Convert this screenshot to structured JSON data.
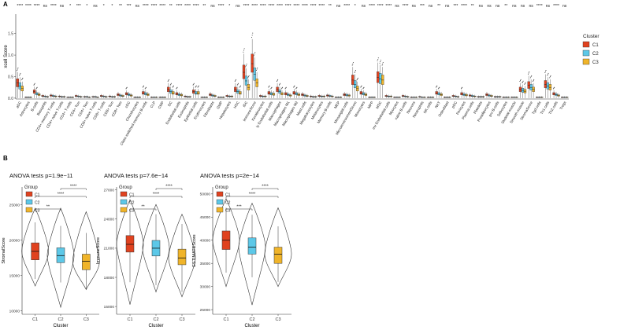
{
  "panel_labels": {
    "a": "A",
    "b": "B"
  },
  "colors": {
    "C1": "#e0421f",
    "C2": "#5cc8e8",
    "C3": "#f0b429"
  },
  "chart_data": [
    {
      "type": "box",
      "panel": "A",
      "ylabel": "xcell Score",
      "yticks": [
        0.0,
        0.5,
        1.0,
        1.5
      ],
      "ylim": [
        -0.02,
        1.95
      ],
      "legend_title": "Cluster",
      "legend_entries": [
        "C1",
        "C2",
        "C3"
      ],
      "categories": [
        "aDC",
        "Astrocytes",
        "B-cells",
        "Basophils",
        "CD4+ memory T-cells",
        "CD4+ naive T-cells",
        "CD4+ T-cells",
        "CD4+ Tcm",
        "CD4+ Tem",
        "CD8+ naive T-cells",
        "CD8+ T-cells",
        "CD8+ Tcm",
        "CD8+ Tem",
        "cDC",
        "Chondrocytes",
        "Class-switched memory B-cells",
        "CLP",
        "CMP",
        "DC",
        "Endothelial cells",
        "Eosinophils",
        "Epithelial cells",
        "Erythrocytes",
        "Fibroblasts",
        "GMP",
        "Hepatocytes",
        "HSC",
        "iDC",
        "ImmuneScore",
        "Keratinocytes",
        "ly Endothelial cells",
        "Macrophages",
        "Macrophages M1",
        "Macrophages M2",
        "Mast cells",
        "Megakaryocytes",
        "Melanocytes",
        "Memory B-cells",
        "MEP",
        "Mesangial cells",
        "MicroenvironmentScore",
        "Monocytes",
        "MPP",
        "MSC",
        "mv Endothelial cells",
        "Myocytes",
        "naive B-cells",
        "Neurons",
        "Neutrophils",
        "NK cells",
        "NKT",
        "Osteoblast",
        "pDC",
        "Pericytes",
        "Plasma cells",
        "Platelets",
        "Preadipocytes",
        "pro B-cells",
        "Sebocytes",
        "Skeletal muscle",
        "Smooth muscle",
        "StromaScore",
        "Tgd cells",
        "Th1 cells",
        "Th2 cells",
        "Tregs"
      ],
      "significance": [
        "****",
        "****",
        "****",
        "ns",
        "****",
        "ns",
        "*",
        "***",
        "*",
        "ns",
        "*",
        "*",
        "**",
        "***",
        "ns",
        "****",
        "****",
        "****",
        "**",
        "****",
        "****",
        "****",
        "**",
        "ns",
        "****",
        "*",
        "ns",
        "****",
        "****",
        "****",
        "****",
        "****",
        "****",
        "****",
        "****",
        "****",
        "****",
        "**",
        "ns",
        "****",
        "*",
        "ns",
        "****",
        "****",
        "****",
        "ns",
        "****",
        "ns",
        "***",
        "ns",
        "**",
        "ns",
        "***",
        "****",
        "**",
        "ns",
        "ns",
        "ns",
        "**",
        "ns",
        "ns",
        "ns",
        "****",
        "ns",
        "****",
        "ns"
      ],
      "series": [
        {
          "name": "C1",
          "values": [
            0.35,
            0.02,
            0.15,
            0.05,
            0.06,
            0.04,
            0.02,
            0.05,
            0.03,
            0.03,
            0.05,
            0.04,
            0.08,
            0.1,
            0.02,
            0.12,
            0.02,
            0.02,
            0.2,
            0.1,
            0.04,
            0.15,
            0.02,
            0.08,
            0.02,
            0.05,
            0.2,
            0.6,
            0.8,
            0.05,
            0.12,
            0.2,
            0.1,
            0.12,
            0.08,
            0.04,
            0.05,
            0.06,
            0.02,
            0.08,
            0.42,
            0.12,
            0.02,
            0.48,
            0.05,
            0.02,
            0.05,
            0.02,
            0.03,
            0.02,
            0.12,
            0.02,
            0.05,
            0.1,
            0.06,
            0.03,
            0.08,
            0.03,
            0.02,
            0.02,
            0.2,
            0.3,
            0.02,
            0.32,
            0.1,
            0.02
          ]
        },
        {
          "name": "C2",
          "values": [
            0.28,
            0.02,
            0.1,
            0.04,
            0.05,
            0.03,
            0.02,
            0.04,
            0.03,
            0.03,
            0.04,
            0.03,
            0.06,
            0.08,
            0.02,
            0.1,
            0.02,
            0.02,
            0.15,
            0.08,
            0.03,
            0.12,
            0.02,
            0.06,
            0.02,
            0.04,
            0.15,
            0.4,
            0.55,
            0.04,
            0.1,
            0.15,
            0.08,
            0.1,
            0.06,
            0.03,
            0.04,
            0.05,
            0.02,
            0.07,
            0.32,
            0.1,
            0.02,
            0.45,
            0.04,
            0.02,
            0.04,
            0.02,
            0.02,
            0.02,
            0.1,
            0.02,
            0.04,
            0.08,
            0.05,
            0.03,
            0.06,
            0.03,
            0.02,
            0.02,
            0.18,
            0.25,
            0.02,
            0.28,
            0.08,
            0.02
          ]
        },
        {
          "name": "C3",
          "values": [
            0.22,
            0.02,
            0.08,
            0.03,
            0.04,
            0.03,
            0.02,
            0.03,
            0.02,
            0.02,
            0.03,
            0.03,
            0.05,
            0.06,
            0.02,
            0.08,
            0.02,
            0.02,
            0.12,
            0.07,
            0.03,
            0.12,
            0.02,
            0.05,
            0.02,
            0.04,
            0.12,
            0.25,
            0.35,
            0.04,
            0.09,
            0.1,
            0.06,
            0.08,
            0.05,
            0.03,
            0.04,
            0.04,
            0.02,
            0.06,
            0.22,
            0.08,
            0.02,
            0.42,
            0.04,
            0.02,
            0.03,
            0.02,
            0.02,
            0.02,
            0.08,
            0.02,
            0.03,
            0.07,
            0.04,
            0.03,
            0.05,
            0.03,
            0.02,
            0.02,
            0.16,
            0.2,
            0.02,
            0.25,
            0.06,
            0.02
          ]
        }
      ]
    },
    {
      "type": "violin",
      "panel": "B",
      "title": "ANOVA tests p=1.9e−11",
      "xlabel": "Cluster",
      "ylabel": "StromalScore",
      "categories": [
        "C1",
        "C2",
        "C3"
      ],
      "yticks": [
        10000,
        15000,
        20000,
        25000
      ],
      "ylim": [
        9500,
        27500
      ],
      "legend_title": "Group",
      "legend_entries": [
        "C1",
        "C2",
        "C3"
      ],
      "boxes": [
        {
          "group": "C1",
          "min": 14500,
          "q1": 17200,
          "median": 18400,
          "q3": 19600,
          "max": 22500,
          "violin": [
            13500,
            24500
          ]
        },
        {
          "group": "C2",
          "min": 14000,
          "q1": 16800,
          "median": 17800,
          "q3": 18900,
          "max": 22000,
          "violin": [
            10500,
            24500
          ]
        },
        {
          "group": "C3",
          "min": 13000,
          "q1": 15800,
          "median": 17000,
          "q3": 18000,
          "max": 21000,
          "violin": [
            13000,
            24000
          ]
        }
      ],
      "comparisons": [
        {
          "pair": [
            "C2",
            "C3"
          ],
          "label": "****"
        },
        {
          "pair": [
            "C1",
            "C3"
          ],
          "label": "****"
        },
        {
          "pair": [
            "C1",
            "C2"
          ],
          "label": "**"
        }
      ]
    },
    {
      "type": "violin",
      "panel": "B",
      "title": "ANOVA tests p=7.6e−14",
      "xlabel": "Cluster",
      "ylabel": "ImmuneScore",
      "categories": [
        "C1",
        "C2",
        "C3"
      ],
      "yticks": [
        15000,
        18000,
        21000,
        24000,
        27000
      ],
      "ylim": [
        14200,
        27300
      ],
      "legend_title": "Group",
      "legend_entries": [
        "C1",
        "C2",
        "C3"
      ],
      "boxes": [
        {
          "group": "C1",
          "min": 17500,
          "q1": 20600,
          "median": 21400,
          "q3": 22300,
          "max": 25000,
          "violin": [
            15200,
            26000
          ]
        },
        {
          "group": "C2",
          "min": 17200,
          "q1": 20200,
          "median": 21000,
          "q3": 21800,
          "max": 24500,
          "violin": [
            16500,
            25500
          ]
        },
        {
          "group": "C3",
          "min": 16500,
          "q1": 19300,
          "median": 20000,
          "q3": 20900,
          "max": 23500,
          "violin": [
            16000,
            24500
          ]
        }
      ],
      "comparisons": [
        {
          "pair": [
            "C2",
            "C3"
          ],
          "label": "****"
        },
        {
          "pair": [
            "C1",
            "C3"
          ],
          "label": "****"
        },
        {
          "pair": [
            "C1",
            "C2"
          ],
          "label": "**"
        }
      ]
    },
    {
      "type": "violin",
      "panel": "B",
      "title": "ANOVA tests p=2e−14",
      "xlabel": "Cluster",
      "ylabel": "ESTIMATEScore",
      "categories": [
        "C1",
        "C2",
        "C3"
      ],
      "yticks": [
        25000,
        30000,
        35000,
        40000,
        45000,
        50000
      ],
      "ylim": [
        24000,
        51500
      ],
      "legend_title": "Group",
      "legend_entries": [
        "C1",
        "C2",
        "C3"
      ],
      "boxes": [
        {
          "group": "C1",
          "min": 33000,
          "q1": 38000,
          "median": 40000,
          "q3": 42000,
          "max": 47000,
          "violin": [
            30000,
            49000
          ]
        },
        {
          "group": "C2",
          "min": 32000,
          "q1": 37000,
          "median": 38500,
          "q3": 40500,
          "max": 45500,
          "violin": [
            26000,
            48000
          ]
        },
        {
          "group": "C3",
          "min": 31000,
          "q1": 35000,
          "median": 37000,
          "q3": 38500,
          "max": 43000,
          "violin": [
            30000,
            47000
          ]
        }
      ],
      "comparisons": [
        {
          "pair": [
            "C2",
            "C3"
          ],
          "label": "****"
        },
        {
          "pair": [
            "C1",
            "C3"
          ],
          "label": "****"
        },
        {
          "pair": [
            "C1",
            "C2"
          ],
          "label": "***"
        }
      ]
    }
  ]
}
